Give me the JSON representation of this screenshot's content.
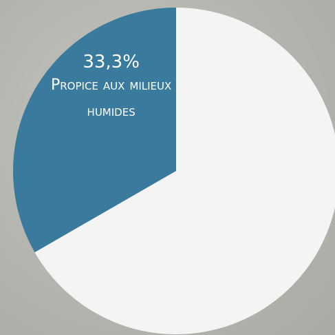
{
  "chart_data": {
    "type": "pie",
    "categories": [
      "Propice aux milieux humides",
      null
    ],
    "values": [
      33.3,
      66.7
    ],
    "value_labels": [
      "33,3%",
      null
    ],
    "colors": [
      "#3a7a9c",
      "#f4f4f4"
    ]
  }
}
